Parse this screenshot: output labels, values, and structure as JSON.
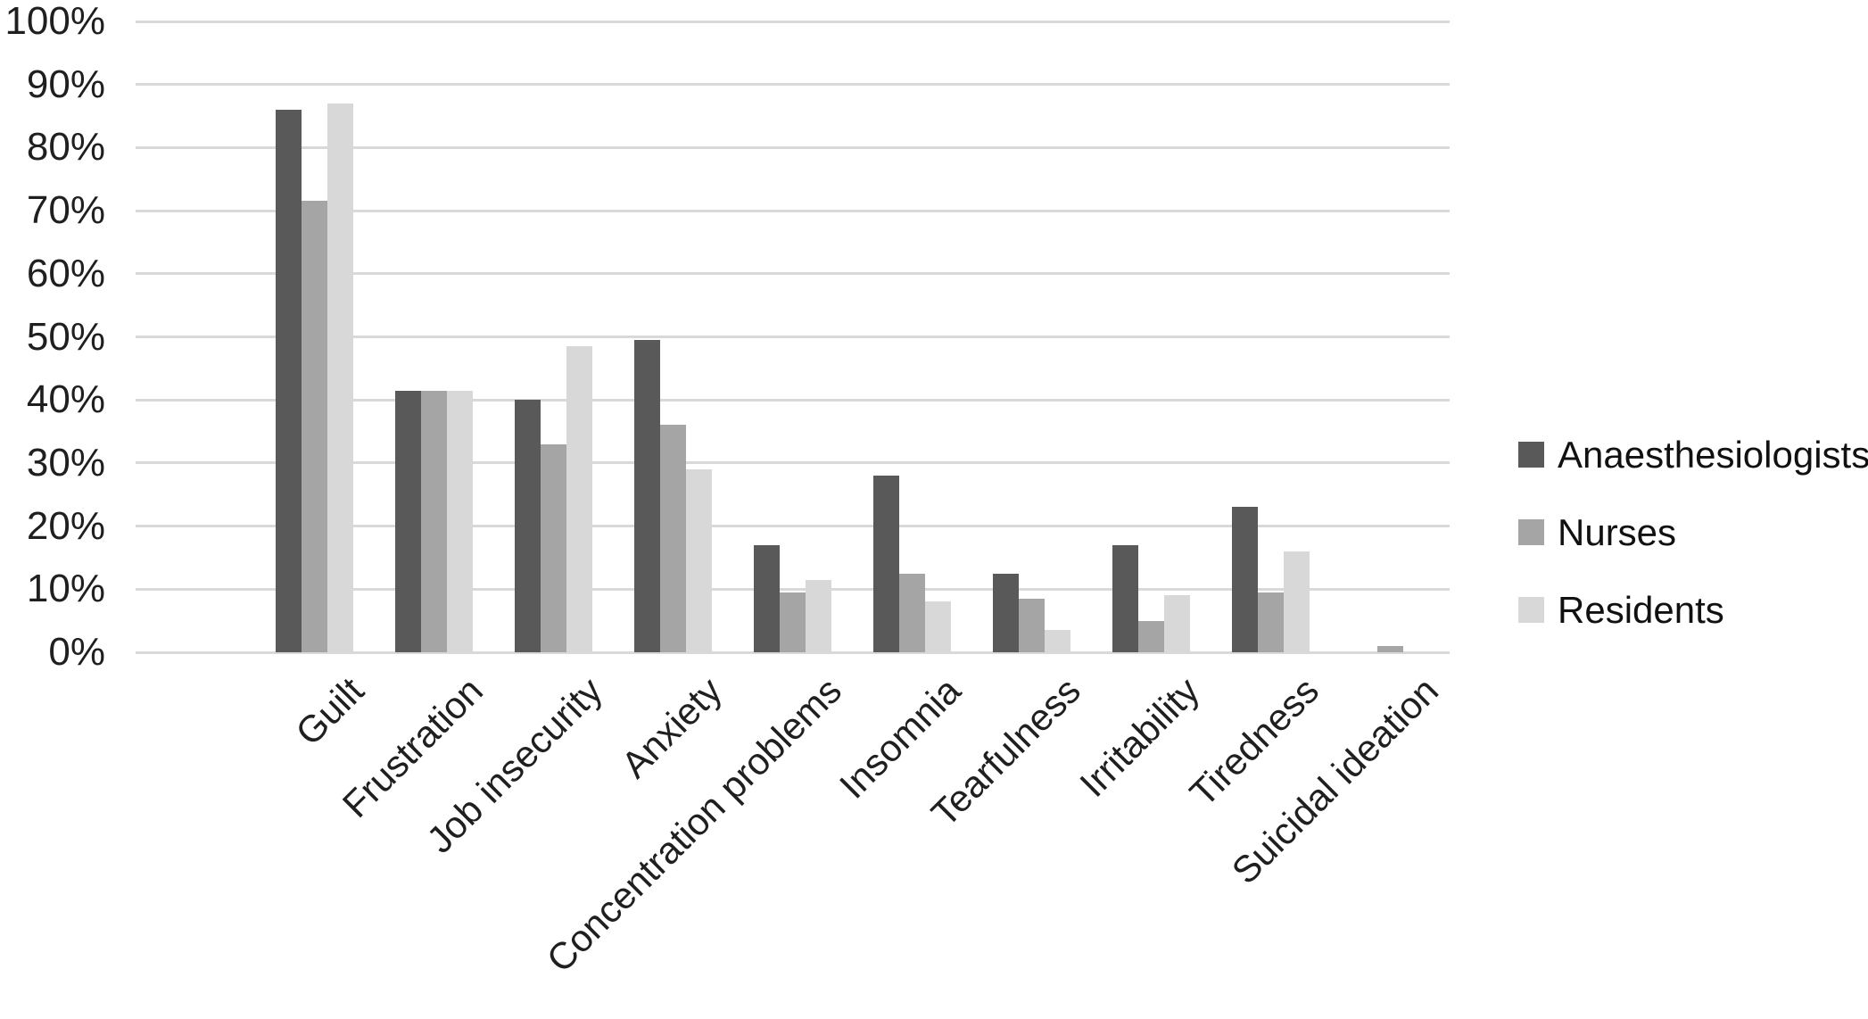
{
  "chart_data": {
    "type": "bar",
    "title": "",
    "xlabel": "",
    "ylabel": "",
    "categories": [
      "Guilt",
      "Frustration",
      "Job insecurity",
      "Anxiety",
      "Concentration problems",
      "Insomnia",
      "Tearfulness",
      "Irritability",
      "Tiredness",
      "Suicidal ideation"
    ],
    "series": [
      {
        "name": "Anaesthesiologists",
        "color": "#595959",
        "values": [
          86,
          41.5,
          40,
          49.5,
          17,
          28,
          12.5,
          17,
          23,
          0
        ]
      },
      {
        "name": "Nurses",
        "color": "#a5a5a5",
        "values": [
          71.5,
          41.5,
          33,
          36,
          9.5,
          12.5,
          8.5,
          5,
          9.5,
          1
        ]
      },
      {
        "name": "Residents",
        "color": "#d8d8d8",
        "values": [
          87,
          41.5,
          48.5,
          29,
          11.5,
          8,
          3.5,
          9,
          16,
          0
        ]
      }
    ],
    "y_ticks": [
      "100%",
      "90%",
      "80%",
      "70%",
      "60%",
      "50%",
      "40%",
      "30%",
      "20%",
      "10%",
      "0%"
    ],
    "ylim": [
      0,
      100
    ],
    "y_step": 10,
    "grid": true,
    "gridline_color": "#d9d9d9",
    "background_color": "#ffffff",
    "text_color": "#1f1f1f",
    "legend_position": "right",
    "leading_empty_slots": 1
  }
}
